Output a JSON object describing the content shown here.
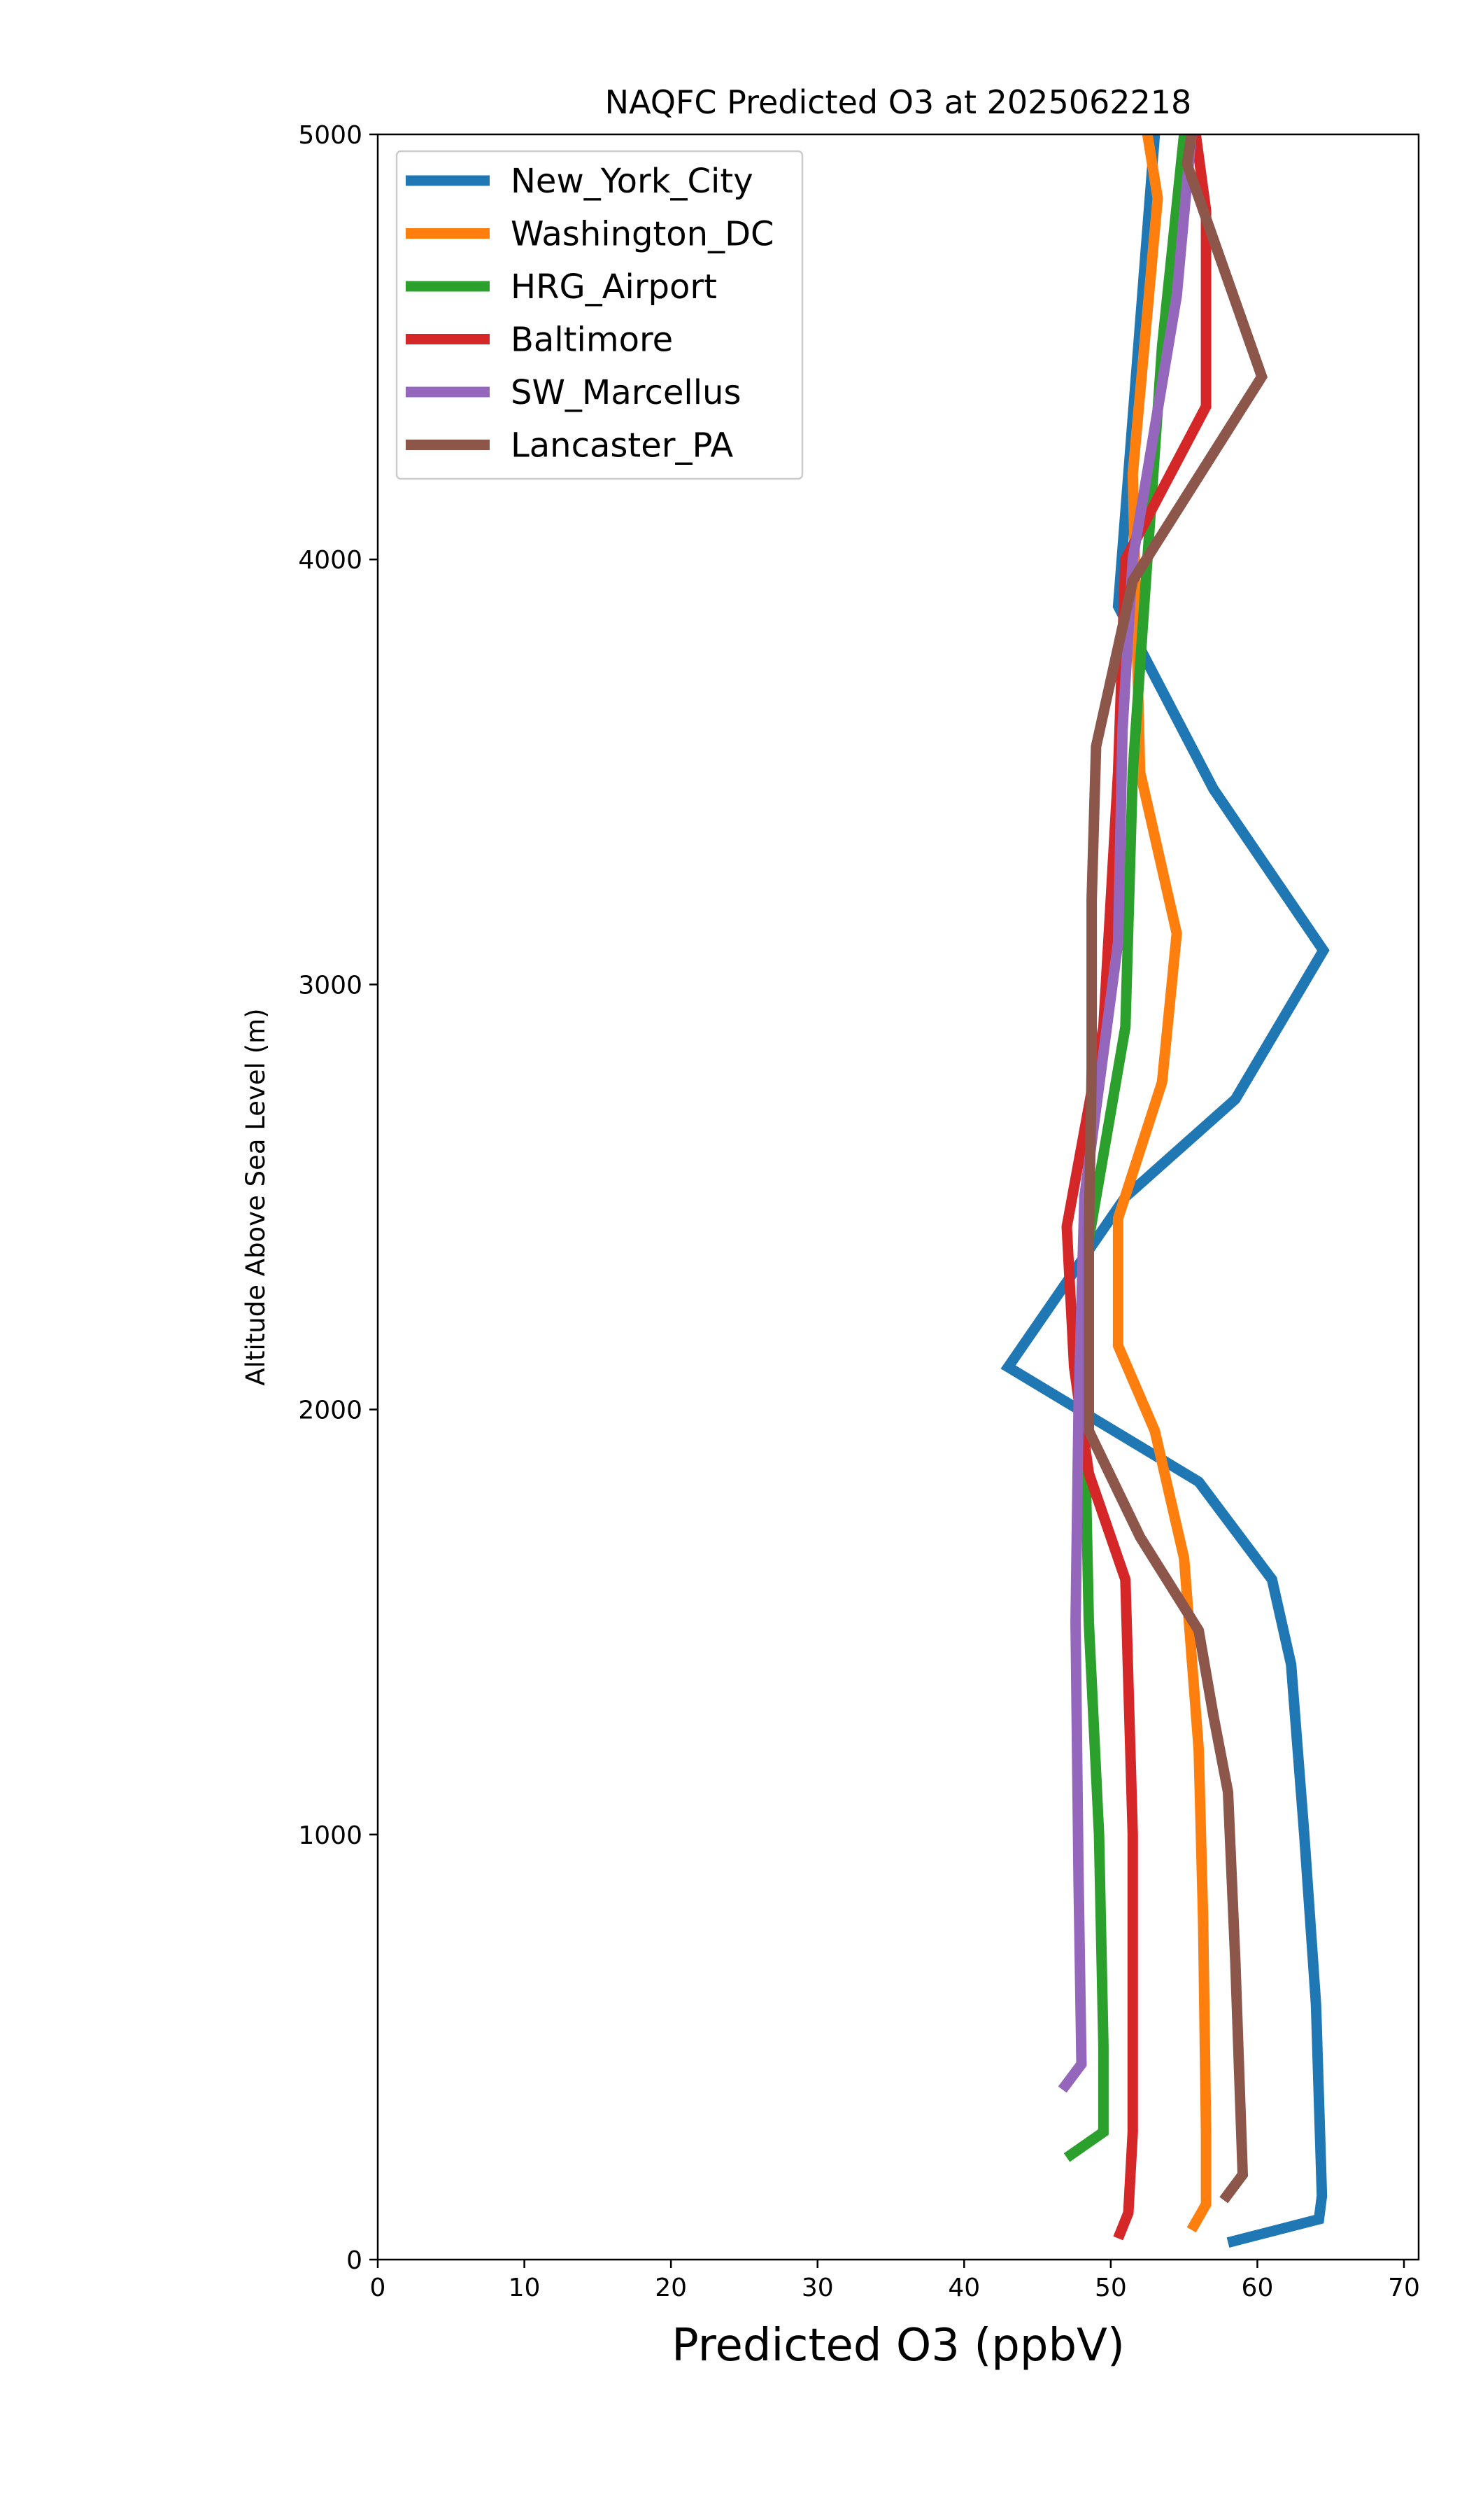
{
  "chart_data": {
    "type": "line",
    "title": "NAQFC Predicted O3 at 2025062218",
    "xlabel": "Predicted O3 (ppbV)",
    "ylabel": "Altitude Above Sea Level (m)",
    "xlim": [
      0,
      71
    ],
    "ylim": [
      0,
      5000
    ],
    "xticks": [
      0,
      10,
      20,
      30,
      40,
      50,
      60,
      70
    ],
    "yticks": [
      0,
      1000,
      2000,
      3000,
      4000,
      5000
    ],
    "grid": false,
    "legend_position": "top-left",
    "series": [
      {
        "name": "New_York_City",
        "color": "#1f77b4",
        "points": [
          [
            58.0,
            40
          ],
          [
            64.2,
            95
          ],
          [
            64.4,
            150
          ],
          [
            64.0,
            600
          ],
          [
            63.2,
            1000
          ],
          [
            62.3,
            1400
          ],
          [
            61.0,
            1600
          ],
          [
            56.0,
            1830
          ],
          [
            43.0,
            2100
          ],
          [
            51.0,
            2500
          ],
          [
            58.5,
            2730
          ],
          [
            64.5,
            3080
          ],
          [
            57.0,
            3460
          ],
          [
            50.5,
            3890
          ],
          [
            53.0,
            5000
          ]
        ]
      },
      {
        "name": "Washington_DC",
        "color": "#ff7f0e",
        "points": [
          [
            55.5,
            70
          ],
          [
            56.5,
            130
          ],
          [
            56.5,
            300
          ],
          [
            56.3,
            800
          ],
          [
            56.0,
            1200
          ],
          [
            55.0,
            1650
          ],
          [
            53.0,
            1950
          ],
          [
            50.5,
            2150
          ],
          [
            50.5,
            2450
          ],
          [
            53.5,
            2770
          ],
          [
            54.5,
            3120
          ],
          [
            52.0,
            3500
          ],
          [
            51.5,
            4200
          ],
          [
            53.2,
            4850
          ],
          [
            52.5,
            5000
          ]
        ]
      },
      {
        "name": "HRG_Airport",
        "color": "#2ca02c",
        "points": [
          [
            47.0,
            240
          ],
          [
            49.5,
            300
          ],
          [
            49.5,
            500
          ],
          [
            49.2,
            1000
          ],
          [
            48.5,
            1500
          ],
          [
            48.2,
            2000
          ],
          [
            48.5,
            2400
          ],
          [
            51.0,
            2900
          ],
          [
            51.5,
            3500
          ],
          [
            53.5,
            4500
          ],
          [
            55.0,
            5000
          ]
        ]
      },
      {
        "name": "Baltimore",
        "color": "#d62728",
        "points": [
          [
            50.5,
            50
          ],
          [
            51.2,
            110
          ],
          [
            51.5,
            300
          ],
          [
            51.5,
            1000
          ],
          [
            51.0,
            1600
          ],
          [
            48.5,
            1850
          ],
          [
            47.5,
            2100
          ],
          [
            47.0,
            2430
          ],
          [
            49.5,
            2900
          ],
          [
            50.5,
            3500
          ],
          [
            51.0,
            4000
          ],
          [
            56.5,
            4360
          ],
          [
            56.5,
            4820
          ],
          [
            55.8,
            5000
          ]
        ]
      },
      {
        "name": "SW_Marcellus",
        "color": "#9467bd",
        "points": [
          [
            46.7,
            400
          ],
          [
            48.0,
            460
          ],
          [
            47.8,
            900
          ],
          [
            47.6,
            1500
          ],
          [
            47.8,
            2000
          ],
          [
            48.2,
            2500
          ],
          [
            50.5,
            3100
          ],
          [
            50.8,
            3600
          ],
          [
            51.5,
            4000
          ],
          [
            54.5,
            4620
          ],
          [
            55.5,
            5000
          ]
        ]
      },
      {
        "name": "Lancaster_PA",
        "color": "#8c564b",
        "points": [
          [
            57.7,
            140
          ],
          [
            59.0,
            200
          ],
          [
            58.5,
            700
          ],
          [
            58.0,
            1100
          ],
          [
            57.0,
            1280
          ],
          [
            56.0,
            1480
          ],
          [
            52.0,
            1700
          ],
          [
            48.5,
            1950
          ],
          [
            48.5,
            2400
          ],
          [
            48.7,
            2800
          ],
          [
            48.7,
            3200
          ],
          [
            49.0,
            3560
          ],
          [
            51.5,
            3950
          ],
          [
            60.3,
            4430
          ],
          [
            55.2,
            4930
          ],
          [
            55.5,
            5000
          ]
        ]
      }
    ]
  }
}
